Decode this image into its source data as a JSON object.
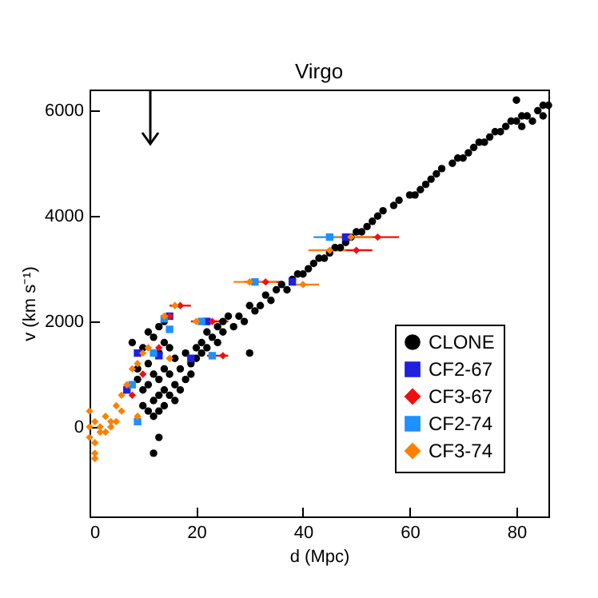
{
  "chart_data": {
    "type": "scatter",
    "title": "Virgo",
    "xlabel": "d (Mpc)",
    "ylabel": "v (km s⁻¹)",
    "xlim": [
      0,
      86
    ],
    "ylim": [
      -1700,
      6400
    ],
    "xticks": [
      0,
      20,
      40,
      60,
      80
    ],
    "yticks": [
      0,
      2000,
      4000,
      6000
    ],
    "grid": false,
    "legend": "bottom right",
    "series": [
      {
        "name": "CLONE",
        "color": "#000000",
        "marker": "circle",
        "x": [
          8,
          9,
          9,
          10,
          10,
          10,
          11,
          11,
          11,
          11,
          12,
          12,
          12,
          12,
          13,
          13,
          13,
          13,
          13,
          14,
          14,
          14,
          14,
          14,
          15,
          15,
          15,
          16,
          16,
          16,
          17,
          17,
          18,
          18,
          19,
          19,
          20,
          20,
          21,
          21,
          22,
          22,
          23,
          24,
          24,
          25,
          25,
          26,
          27,
          28,
          29,
          30,
          30,
          31,
          32,
          33,
          34,
          35,
          36,
          37,
          38,
          39,
          40,
          41,
          42,
          43,
          44,
          45,
          46,
          47,
          48,
          49,
          50,
          51,
          52,
          53,
          54,
          55,
          57,
          58,
          60,
          61,
          62,
          63,
          64,
          65,
          66,
          68,
          69,
          70,
          71,
          72,
          73,
          74,
          75,
          76,
          77,
          78,
          79,
          80,
          80,
          81,
          81,
          82,
          83,
          84,
          85,
          85,
          86,
          13,
          12
        ],
        "values": [
          1600,
          1100,
          900,
          1500,
          700,
          400,
          1800,
          1200,
          300,
          800,
          1700,
          1000,
          500,
          200,
          1900,
          1400,
          900,
          600,
          300,
          2000,
          1600,
          1100,
          700,
          400,
          1500,
          1000,
          600,
          1300,
          800,
          500,
          1100,
          700,
          1400,
          900,
          1200,
          1000,
          1500,
          1300,
          1600,
          1400,
          1800,
          1500,
          1700,
          1900,
          1600,
          2000,
          1800,
          2100,
          1900,
          2100,
          2000,
          2300,
          1400,
          2200,
          2300,
          2500,
          2400,
          2600,
          2700,
          2600,
          2800,
          2900,
          2900,
          3000,
          3100,
          3200,
          3200,
          3300,
          3400,
          3400,
          3500,
          3600,
          3700,
          3700,
          3800,
          3900,
          4000,
          4100,
          4200,
          4300,
          4400,
          4400,
          4500,
          4600,
          4700,
          4800,
          4900,
          5000,
          5100,
          5100,
          5200,
          5300,
          5400,
          5400,
          5500,
          5600,
          5600,
          5700,
          5800,
          5800,
          6200,
          5900,
          5700,
          5900,
          5800,
          6000,
          6100,
          5900,
          6100,
          -200,
          -500
        ]
      },
      {
        "name": "CF2-67",
        "color": "#2020e0",
        "marker": "square",
        "x": [
          48,
          38,
          22,
          15,
          13,
          9,
          7,
          19
        ],
        "values": [
          3600,
          2750,
          2000,
          2100,
          1350,
          1400,
          700,
          1300
        ],
        "xerrors": [
          null,
          null,
          null,
          null,
          null,
          null,
          null,
          null
        ]
      },
      {
        "name": "CF3-67",
        "color": "#ee1010",
        "marker": "diamond",
        "x": [
          33,
          50,
          54,
          23,
          17,
          15,
          13,
          10,
          8,
          25
        ],
        "values": [
          2750,
          3350,
          3600,
          2000,
          2300,
          2100,
          1500,
          1000,
          600,
          1350
        ],
        "xerrors": [
          [
            29,
            36
          ],
          [
            46,
            53
          ],
          [
            50,
            58
          ],
          [
            19,
            26
          ],
          [
            15,
            19
          ],
          null,
          null,
          null,
          null,
          [
            22,
            26
          ]
        ]
      },
      {
        "name": "CF2-74",
        "color": "#1e90ff",
        "marker": "square",
        "x": [
          45,
          31,
          21,
          14,
          12,
          8,
          9,
          23,
          15
        ],
        "values": [
          3600,
          2750,
          2000,
          2050,
          1400,
          800,
          100,
          1350,
          1850
        ],
        "xerrors": [
          [
            42,
            49
          ],
          null,
          null,
          null,
          null,
          null,
          null,
          null,
          null
        ]
      },
      {
        "name": "CF3-74",
        "color": "#ff8000",
        "marker": "diamond",
        "x": [
          0,
          0,
          0,
          1,
          1,
          1,
          1,
          2,
          2,
          3,
          3,
          4,
          4,
          5,
          5,
          6,
          6,
          7,
          8,
          9,
          10,
          11,
          14,
          16,
          9,
          20,
          15,
          30,
          40,
          45,
          49
        ],
        "values": [
          300,
          0,
          -200,
          -300,
          -500,
          -600,
          100,
          0,
          -100,
          200,
          -100,
          100,
          0,
          100,
          400,
          600,
          300,
          800,
          1100,
          1200,
          1400,
          1500,
          2100,
          2300,
          200,
          2000,
          1300,
          2750,
          2700,
          3350,
          3600
        ],
        "xerrors": [
          null,
          null,
          null,
          null,
          null,
          null,
          null,
          null,
          null,
          null,
          null,
          null,
          null,
          null,
          null,
          null,
          null,
          null,
          null,
          null,
          null,
          null,
          null,
          null,
          null,
          null,
          null,
          [
            27,
            35
          ],
          [
            38,
            43
          ],
          [
            41,
            48
          ],
          [
            46,
            53
          ]
        ]
      }
    ]
  }
}
